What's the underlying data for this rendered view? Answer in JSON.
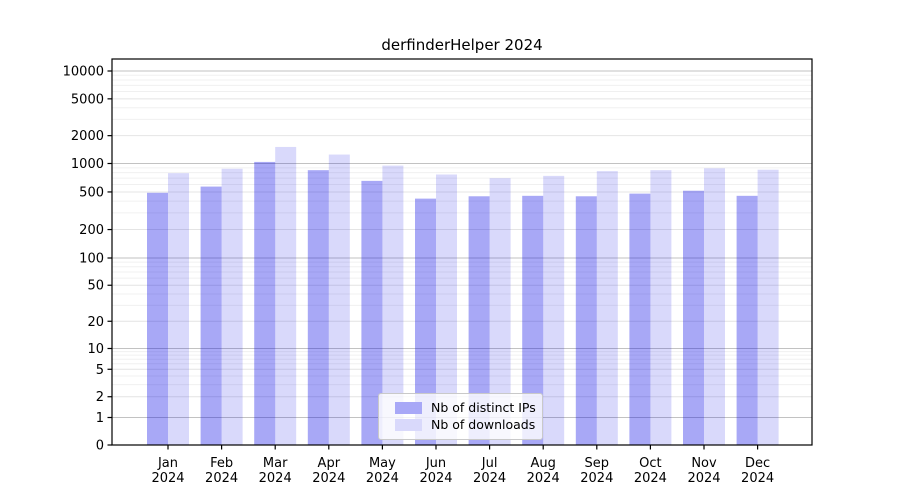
{
  "chart_data": {
    "type": "bar",
    "title": "derfinderHelper 2024",
    "categories": [
      "Jan 2024",
      "Feb 2024",
      "Mar 2024",
      "Apr 2024",
      "May 2024",
      "Jun 2024",
      "Jul 2024",
      "Aug 2024",
      "Sep 2024",
      "Oct 2024",
      "Nov 2024",
      "Dec 2024"
    ],
    "series": [
      {
        "name": "Nb of distinct IPs",
        "color": "#a8a8f7",
        "fill": "rgba(0,0,230,0.34)",
        "values": [
          490,
          570,
          1040,
          850,
          655,
          425,
          450,
          455,
          450,
          480,
          515,
          455
        ]
      },
      {
        "name": "Nb of downloads",
        "color": "#d9d9fb",
        "fill": "rgba(0,0,230,0.15)",
        "values": [
          790,
          880,
          1510,
          1250,
          950,
          765,
          700,
          740,
          830,
          850,
          890,
          860
        ]
      }
    ],
    "xlabel": "",
    "ylabel": "",
    "yscale": "symlog",
    "ylim": [
      0,
      14000
    ],
    "yticks": [
      0,
      1,
      2,
      5,
      10,
      20,
      50,
      100,
      200,
      500,
      1000,
      2000,
      5000,
      10000
    ],
    "grid": true,
    "legend_position": "lower-center-inside"
  },
  "colors": {
    "grid_decade": "#c2c2c2",
    "grid_labeled": "#e4e4e4",
    "grid_minor": "#f0f0f0",
    "axis": "#000000",
    "background": "#ffffff"
  }
}
